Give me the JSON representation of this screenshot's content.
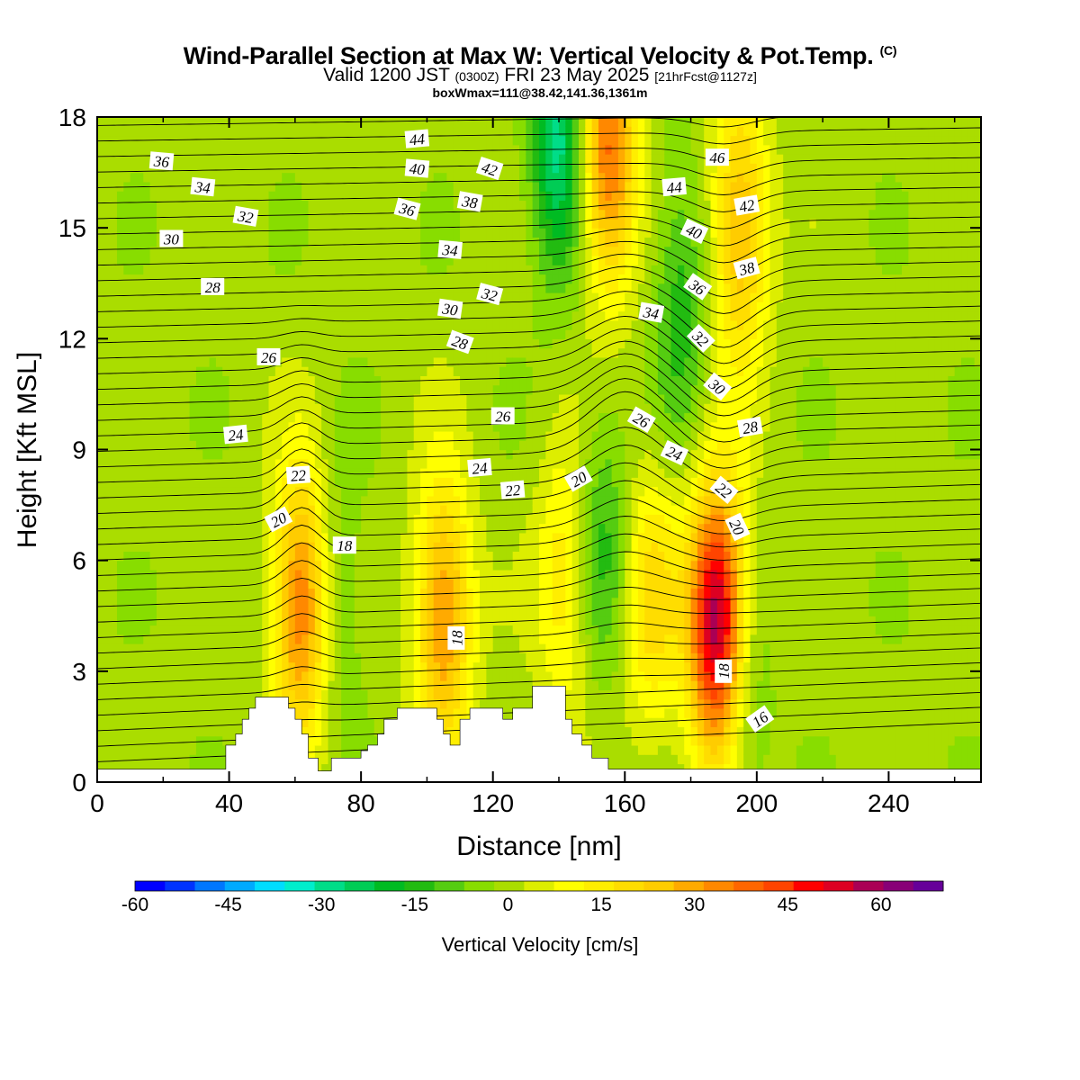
{
  "header": {
    "title": "Wind-Parallel Section at Max W: Vertical Velocity & Pot.Temp.",
    "copyright": "(C)",
    "valid_prefix": "Valid 1200 JST",
    "valid_utc": "(0300Z)",
    "valid_date": "FRI 23 May 2025",
    "forecast": "[21hrFcst@1127z]",
    "box_info": "boxWmax=111@38.42,141.36,1361m"
  },
  "chart_data": {
    "type": "heatmap",
    "xlabel": "Distance [nm]",
    "ylabel": "Height [Kft MSL]",
    "xlim": [
      0,
      268
    ],
    "ylim": [
      0,
      18
    ],
    "x_ticks": [
      "0",
      "40",
      "80",
      "120",
      "160",
      "200",
      "240"
    ],
    "y_ticks": [
      "0",
      "3",
      "6",
      "9",
      "12",
      "15",
      "18"
    ],
    "colorbar": {
      "label": "Vertical Velocity [cm/s]",
      "ticks": [
        "-60",
        "-45",
        "-30",
        "-15",
        "0",
        "15",
        "30",
        "45",
        "60"
      ],
      "min": -60,
      "max": 70,
      "step": 5,
      "colors": [
        "#0000ff",
        "#0033ff",
        "#0077ff",
        "#00aaff",
        "#00ddff",
        "#00eecc",
        "#00dd88",
        "#00cc55",
        "#00bb22",
        "#22bb11",
        "#55cc11",
        "#88dd00",
        "#aadd00",
        "#ddee00",
        "#ffff00",
        "#ffee00",
        "#ffdd00",
        "#ffcc00",
        "#ffaa00",
        "#ff8800",
        "#ff6600",
        "#ff4400",
        "#ff0000",
        "#dd0022",
        "#aa0055",
        "#880077",
        "#660099"
      ]
    },
    "vertical_velocity_features": [
      {
        "x": 62,
        "y": 4.8,
        "peak": 40
      },
      {
        "x": 105,
        "y": 4.5,
        "peak": 35
      },
      {
        "x": 188,
        "y": 4.3,
        "peak": 65
      },
      {
        "x": 168,
        "y": 5.0,
        "peak": 20
      },
      {
        "x": 142,
        "y": 5.5,
        "peak": 18
      },
      {
        "x": 155,
        "y": 17.0,
        "peak": 40
      },
      {
        "x": 195,
        "y": 15.0,
        "peak": 30
      },
      {
        "x": 140,
        "y": 17.5,
        "peak": -30
      },
      {
        "x": 153,
        "y": 6.5,
        "peak": -15
      },
      {
        "x": 177,
        "y": 13.0,
        "peak": -15
      },
      {
        "x": 195,
        "y": 2.0,
        "peak": -12
      },
      {
        "x": 72,
        "y": 5.0,
        "peak": -10
      }
    ],
    "contour_labels": [
      {
        "text": "36",
        "x": 19.5,
        "y": 16.8,
        "rot": 5
      },
      {
        "text": "34",
        "x": 32,
        "y": 16.1,
        "rot": 6
      },
      {
        "text": "32",
        "x": 45,
        "y": 15.3,
        "rot": 10
      },
      {
        "text": "30",
        "x": 22.5,
        "y": 14.7,
        "rot": 0
      },
      {
        "text": "28",
        "x": 35,
        "y": 13.4,
        "rot": 0
      },
      {
        "text": "26",
        "x": 52,
        "y": 11.5,
        "rot": 0
      },
      {
        "text": "24",
        "x": 42,
        "y": 9.4,
        "rot": -6
      },
      {
        "text": "22",
        "x": 61,
        "y": 8.3,
        "rot": -4
      },
      {
        "text": "20",
        "x": 55,
        "y": 7.1,
        "rot": -28
      },
      {
        "text": "18",
        "x": 75,
        "y": 6.4,
        "rot": 0
      },
      {
        "text": "44",
        "x": 97,
        "y": 17.4,
        "rot": -5
      },
      {
        "text": "42",
        "x": 119,
        "y": 16.6,
        "rot": 18
      },
      {
        "text": "40",
        "x": 97,
        "y": 16.6,
        "rot": 5
      },
      {
        "text": "38",
        "x": 113,
        "y": 15.7,
        "rot": 10
      },
      {
        "text": "36",
        "x": 94,
        "y": 15.5,
        "rot": 15
      },
      {
        "text": "34",
        "x": 107,
        "y": 14.4,
        "rot": 5
      },
      {
        "text": "32",
        "x": 119,
        "y": 13.2,
        "rot": 15
      },
      {
        "text": "30",
        "x": 107,
        "y": 12.8,
        "rot": 8
      },
      {
        "text": "28",
        "x": 110,
        "y": 11.9,
        "rot": 20
      },
      {
        "text": "26",
        "x": 123,
        "y": 9.9,
        "rot": 0
      },
      {
        "text": "24",
        "x": 116,
        "y": 8.5,
        "rot": -5
      },
      {
        "text": "22",
        "x": 126,
        "y": 7.9,
        "rot": -5
      },
      {
        "text": "20",
        "x": 146,
        "y": 8.2,
        "rot": -30
      },
      {
        "text": "18",
        "x": 109,
        "y": 3.9,
        "rot": -90
      },
      {
        "text": "46",
        "x": 188,
        "y": 16.9,
        "rot": 0
      },
      {
        "text": "44",
        "x": 175,
        "y": 16.1,
        "rot": -5
      },
      {
        "text": "42",
        "x": 197,
        "y": 15.6,
        "rot": -10
      },
      {
        "text": "40",
        "x": 181,
        "y": 14.9,
        "rot": 25
      },
      {
        "text": "38",
        "x": 197,
        "y": 13.9,
        "rot": -15
      },
      {
        "text": "36",
        "x": 182,
        "y": 13.4,
        "rot": 35
      },
      {
        "text": "34",
        "x": 168,
        "y": 12.7,
        "rot": 10
      },
      {
        "text": "32",
        "x": 183,
        "y": 12.0,
        "rot": 45
      },
      {
        "text": "30",
        "x": 188,
        "y": 10.7,
        "rot": 40
      },
      {
        "text": "28",
        "x": 198,
        "y": 9.6,
        "rot": -10
      },
      {
        "text": "26",
        "x": 165,
        "y": 9.8,
        "rot": 30
      },
      {
        "text": "24",
        "x": 175,
        "y": 8.9,
        "rot": 25
      },
      {
        "text": "22",
        "x": 190,
        "y": 7.9,
        "rot": 40
      },
      {
        "text": "20",
        "x": 194,
        "y": 6.9,
        "rot": 65
      },
      {
        "text": "18",
        "x": 190,
        "y": 3.0,
        "rot": -90
      },
      {
        "text": "16",
        "x": 201,
        "y": 1.7,
        "rot": -35
      }
    ],
    "terrain": [
      [
        0,
        0.35
      ],
      [
        39,
        0.35
      ],
      [
        39,
        1.0
      ],
      [
        42,
        1.0
      ],
      [
        42,
        1.3
      ],
      [
        44,
        1.3
      ],
      [
        44,
        1.7
      ],
      [
        46,
        1.7
      ],
      [
        46,
        2.0
      ],
      [
        48,
        2.0
      ],
      [
        48,
        2.3
      ],
      [
        58,
        2.3
      ],
      [
        58,
        2.0
      ],
      [
        60,
        2.0
      ],
      [
        60,
        1.7
      ],
      [
        62,
        1.7
      ],
      [
        62,
        1.3
      ],
      [
        64,
        1.3
      ],
      [
        64,
        0.65
      ],
      [
        67,
        0.65
      ],
      [
        67,
        0.3
      ],
      [
        71,
        0.3
      ],
      [
        71,
        0.65
      ],
      [
        80,
        0.65
      ],
      [
        80,
        0.85
      ],
      [
        82,
        0.85
      ],
      [
        82,
        1.0
      ],
      [
        85,
        1.0
      ],
      [
        85,
        1.3
      ],
      [
        87,
        1.3
      ],
      [
        87,
        1.7
      ],
      [
        91,
        1.7
      ],
      [
        91,
        2.0
      ],
      [
        103,
        2.0
      ],
      [
        103,
        1.7
      ],
      [
        105,
        1.7
      ],
      [
        105,
        1.3
      ],
      [
        107,
        1.3
      ],
      [
        107,
        1.0
      ],
      [
        110,
        1.0
      ],
      [
        110,
        1.7
      ],
      [
        113,
        1.7
      ],
      [
        113,
        2.0
      ],
      [
        123,
        2.0
      ],
      [
        123,
        1.7
      ],
      [
        126,
        1.7
      ],
      [
        126,
        2.0
      ],
      [
        132,
        2.0
      ],
      [
        132,
        2.6
      ],
      [
        142,
        2.6
      ],
      [
        142,
        1.7
      ],
      [
        144,
        1.7
      ],
      [
        144,
        1.3
      ],
      [
        147,
        1.3
      ],
      [
        147,
        1.0
      ],
      [
        150,
        1.0
      ],
      [
        150,
        0.65
      ],
      [
        155,
        0.65
      ],
      [
        155,
        0.35
      ],
      [
        268,
        0.35
      ]
    ]
  }
}
